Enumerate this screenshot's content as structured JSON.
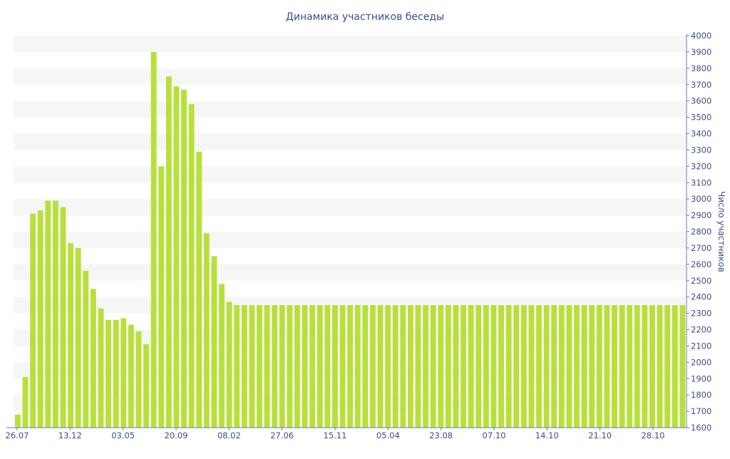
{
  "chart_data": {
    "type": "bar",
    "title": "Динамика участников беседы",
    "xlabel": "",
    "ylabel": "Число участников",
    "ylim": [
      1600,
      4000
    ],
    "y_ticks": [
      1600,
      1700,
      1800,
      1900,
      2000,
      2100,
      2200,
      2300,
      2400,
      2500,
      2600,
      2700,
      2800,
      2900,
      3000,
      3100,
      3200,
      3300,
      3400,
      3500,
      3600,
      3700,
      3800,
      3900,
      4000
    ],
    "x_tick_labels": [
      "26.07",
      "13.12",
      "03.05",
      "20.09",
      "08.02",
      "27.06",
      "15.11",
      "05.04",
      "23.08",
      "07.10",
      "14.10",
      "21.10",
      "28.10"
    ],
    "grid": "alternating horizontal bands",
    "y_axis_side": "right",
    "bar_color": "#b8e03a",
    "band_color": "#f6f6f6",
    "text_color": "#3a4f8a",
    "values": [
      1680,
      1910,
      2910,
      2930,
      2990,
      2990,
      2950,
      2730,
      2700,
      2560,
      2450,
      2330,
      2260,
      2260,
      2270,
      2230,
      2190,
      2110,
      3900,
      3200,
      3750,
      3690,
      3670,
      3580,
      3290,
      2790,
      2650,
      2480,
      2370,
      2350,
      2350,
      2350,
      2350,
      2350,
      2350,
      2350,
      2350,
      2350,
      2350,
      2350,
      2350,
      2350,
      2350,
      2350,
      2350,
      2350,
      2350,
      2350,
      2350,
      2350,
      2350,
      2350,
      2350,
      2350,
      2350,
      2350,
      2350,
      2350,
      2350,
      2350,
      2350,
      2350,
      2350,
      2350,
      2350,
      2350,
      2350,
      2350,
      2350,
      2350,
      2350,
      2350,
      2350,
      2350,
      2350,
      2350,
      2350,
      2350,
      2350,
      2350,
      2350,
      2350,
      2350,
      2350,
      2350,
      2350,
      2350,
      2350,
      2350
    ]
  }
}
